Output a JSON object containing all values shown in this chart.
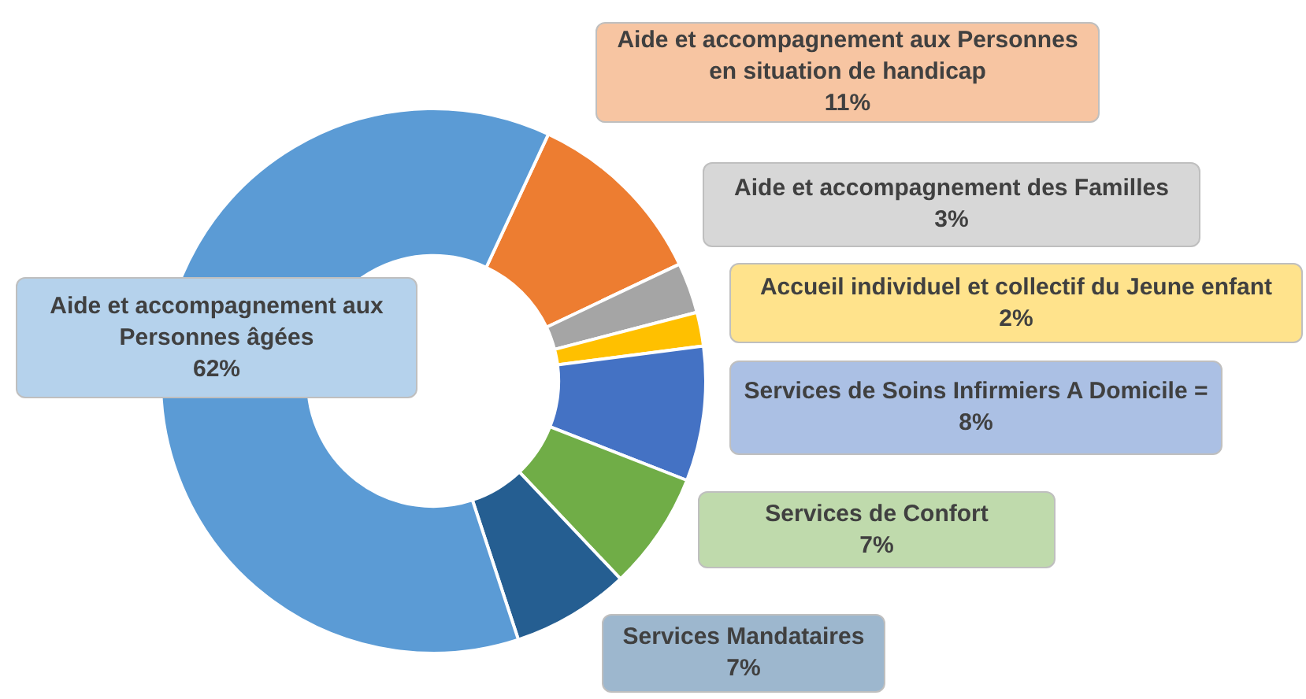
{
  "chart_data": {
    "type": "donut",
    "categories": [
      "Aide et accompagnement aux Personnes en situation de handicap",
      "Aide et accompagnement des Familles",
      "Accueil individuel et collectif du Jeune enfant",
      "Services de Soins Infirmiers A Domicile",
      "Services de Confort",
      "Services Mandataires",
      "Aide et accompagnement aux Personnes âgées"
    ],
    "values": [
      11,
      3,
      2,
      8,
      7,
      7,
      62
    ],
    "value_labels": [
      "11%",
      "3%",
      "2%",
      "= 8%",
      "7%",
      "7%",
      "62%"
    ],
    "colors": [
      "#ed7d31",
      "#a5a5a5",
      "#ffc000",
      "#4472c4",
      "#70ad47",
      "#255e91",
      "#5b9bd5"
    ],
    "legend": false
  }
}
